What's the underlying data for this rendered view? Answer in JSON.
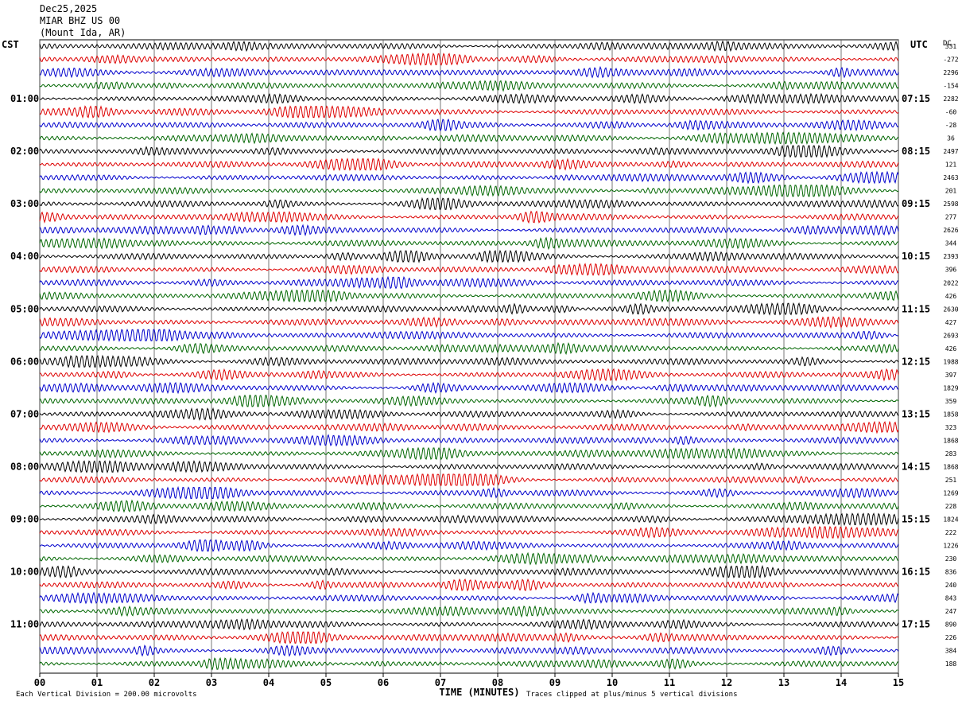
{
  "header": {
    "date": "Dec25,2025",
    "station": "MIAR BHZ US 00",
    "location": "(Mount Ida, AR)"
  },
  "left_tz": "CST",
  "right_tz": "UTC",
  "dc_label": "DC",
  "footer": {
    "scale": "Each Vertical Division =  200.00 microvolts",
    "clip": "Traces clipped at plus/minus 5 vertical divisions"
  },
  "colors": {
    "black": "#000000",
    "red": "#dd0000",
    "blue": "#0000cc",
    "green": "#006600",
    "grid": "#555555"
  },
  "chart_data": {
    "type": "line",
    "title": "",
    "xlabel": "TIME (MINUTES)",
    "x_ticks": [
      "00",
      "01",
      "02",
      "03",
      "04",
      "05",
      "06",
      "07",
      "08",
      "09",
      "10",
      "11",
      "12",
      "13",
      "14",
      "15"
    ],
    "xlim": [
      0,
      15
    ],
    "trace_minutes": 15,
    "trace_colors": [
      "black",
      "red",
      "blue",
      "green"
    ],
    "num_traces": 48,
    "left_hour_labels": [
      "01:00",
      "02:00",
      "03:00",
      "04:00",
      "05:00",
      "06:00",
      "07:00",
      "08:00",
      "09:00",
      "10:00",
      "11:00"
    ],
    "right_hour_labels": [
      "07:15",
      "08:15",
      "09:15",
      "10:15",
      "11:15",
      "12:15",
      "13:15",
      "14:15",
      "15:15",
      "16:15",
      "17:15"
    ],
    "dc_offsets": [
      "331",
      "-272",
      "2296",
      "-154",
      "2282",
      "-60",
      "-28",
      "36",
      "2497",
      "121",
      "2463",
      "201",
      "2598",
      "277",
      "2626",
      "344",
      "2393",
      "396",
      "2022",
      "426",
      "2630",
      "427",
      "2693",
      "426",
      "1988",
      "397",
      "1829",
      "359",
      "1858",
      "323",
      "1868",
      "283",
      "1868",
      "251",
      "1269",
      "228",
      "1824",
      "222",
      "1226",
      "230",
      "836",
      "240",
      "843",
      "247",
      "890",
      "226",
      "384",
      "188"
    ]
  }
}
